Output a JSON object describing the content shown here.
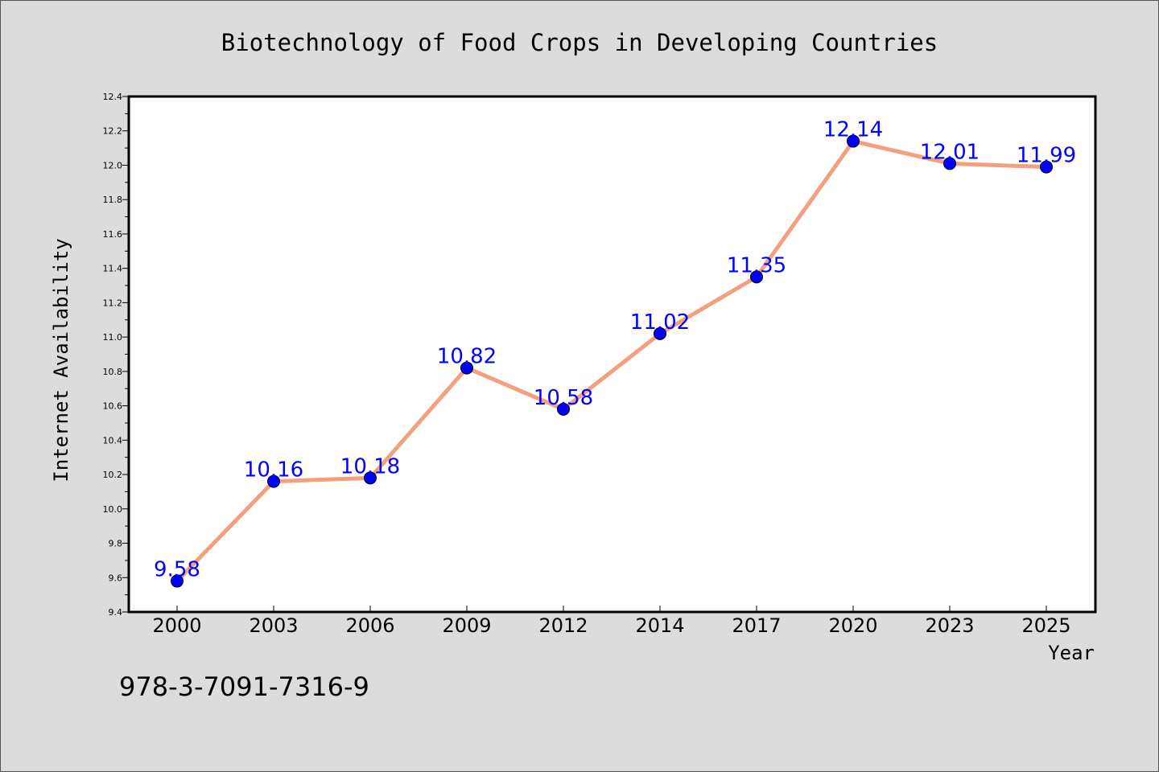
{
  "chart_data": {
    "type": "line",
    "title": "Biotechnology of Food Crops in Developing Countries",
    "xlabel": "Year",
    "ylabel": "Internet Availability",
    "categories": [
      "2000",
      "2003",
      "2006",
      "2009",
      "2012",
      "2014",
      "2017",
      "2020",
      "2023",
      "2025"
    ],
    "values": [
      9.58,
      10.16,
      10.18,
      10.82,
      10.58,
      11.02,
      11.35,
      12.14,
      12.01,
      11.99
    ],
    "data_labels": [
      "9.58",
      "10.16",
      "10.18",
      "10.82",
      "10.58",
      "11.02",
      "11.35",
      "12.14",
      "12.01",
      "11.99"
    ],
    "ylim": [
      9.4,
      12.4
    ],
    "yticks": [
      "9.4",
      "9.6",
      "9.8",
      "10.0",
      "10.2",
      "10.4",
      "10.6",
      "10.8",
      "11.0",
      "11.2",
      "11.4",
      "11.6",
      "11.8",
      "12.0",
      "12.2",
      "12.4"
    ],
    "grid": false,
    "legend": "none",
    "line_color": "#f4a07e",
    "marker_color": "#0000ff",
    "label_color": "#0000ff",
    "background_color": "#dcdcdc",
    "plot_background": "#ffffff"
  },
  "footer": {
    "isbn": "978-3-7091-7316-9"
  }
}
